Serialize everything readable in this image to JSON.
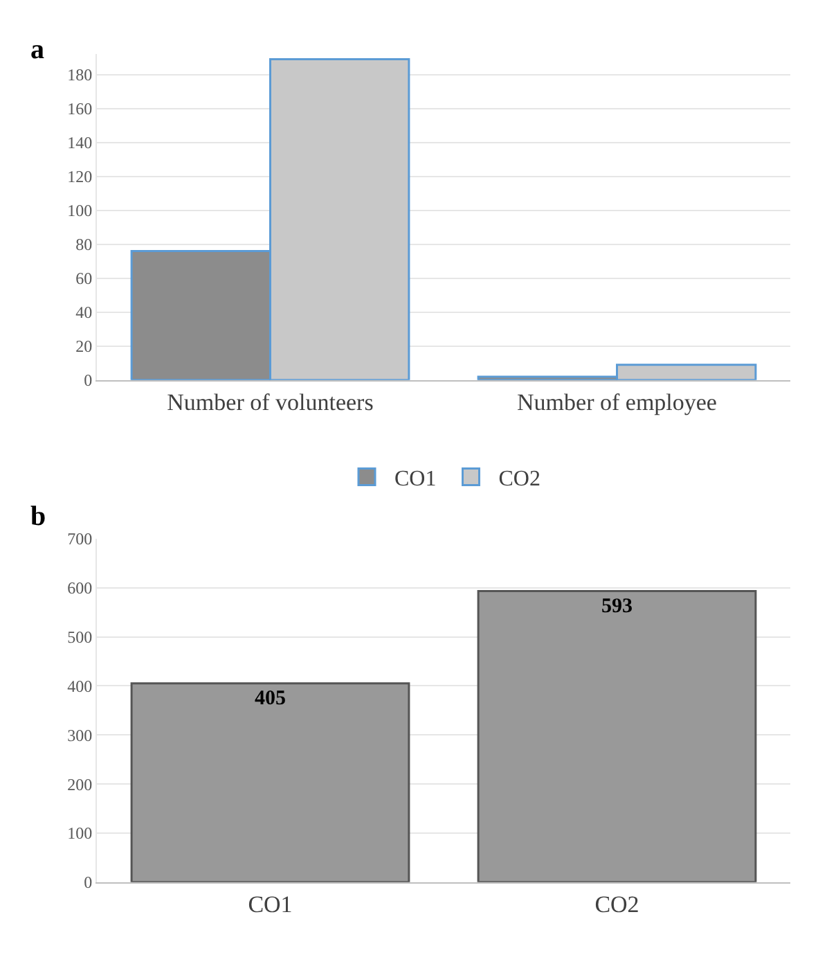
{
  "chart_data": [
    {
      "type": "bar",
      "title": "a",
      "categories": [
        "Number of volunteers",
        "Number of employee"
      ],
      "series": [
        {
          "name": "CO1",
          "color": "#8c8c8c",
          "values": [
            76,
            2
          ]
        },
        {
          "name": "CO2",
          "color": "#c8c8c8",
          "values": [
            189,
            9
          ]
        }
      ],
      "ylim": [
        0,
        192
      ],
      "yticks": [
        0,
        20,
        40,
        60,
        80,
        100,
        120,
        140,
        160,
        180
      ],
      "grid": "y",
      "legend": "bottom"
    },
    {
      "type": "bar",
      "title": "b",
      "categories": [
        "CO1",
        "CO2"
      ],
      "values": [
        405,
        593
      ],
      "color": "#999999",
      "data_labels": true,
      "ylim": [
        0,
        700
      ],
      "yticks": [
        0,
        100,
        200,
        300,
        400,
        500,
        600,
        700
      ],
      "grid": "y"
    }
  ]
}
